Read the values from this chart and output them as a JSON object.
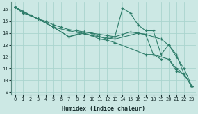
{
  "xlabel": "Humidex (Indice chaleur)",
  "xlim": [
    -0.5,
    23.5
  ],
  "ylim": [
    8.8,
    16.6
  ],
  "yticks": [
    9,
    10,
    11,
    12,
    13,
    14,
    15,
    16
  ],
  "xticks": [
    0,
    1,
    2,
    3,
    4,
    5,
    6,
    7,
    8,
    9,
    10,
    11,
    12,
    13,
    14,
    15,
    16,
    17,
    18,
    19,
    20,
    21,
    22,
    23
  ],
  "bg_color": "#cce8e4",
  "grid_color": "#aad4ce",
  "line_color": "#2e7d6a",
  "lines": [
    {
      "x": [
        0,
        1,
        2,
        3,
        5,
        7,
        9,
        10,
        11,
        12,
        13,
        14,
        15,
        16,
        17,
        18,
        19,
        20,
        21,
        22,
        23
      ],
      "y": [
        16.2,
        15.7,
        15.5,
        15.2,
        14.5,
        13.7,
        14.1,
        14.0,
        13.7,
        13.5,
        13.7,
        16.1,
        15.7,
        14.7,
        14.2,
        14.2,
        12.2,
        13.0,
        12.2,
        10.5,
        9.5
      ]
    },
    {
      "x": [
        0,
        1,
        2,
        3,
        4,
        5,
        6,
        7,
        8,
        9,
        10,
        11,
        12,
        13,
        14,
        15,
        16,
        17,
        18,
        19,
        20,
        21,
        22,
        23
      ],
      "y": [
        16.2,
        15.8,
        15.5,
        15.2,
        15.0,
        14.7,
        14.5,
        14.3,
        14.2,
        14.1,
        14.0,
        13.9,
        13.8,
        13.7,
        13.9,
        14.1,
        14.0,
        13.9,
        13.7,
        13.5,
        13.0,
        12.0,
        11.0,
        9.5
      ]
    },
    {
      "x": [
        0,
        2,
        3,
        5,
        7,
        9,
        10,
        11,
        12,
        13,
        17,
        18,
        20,
        21,
        22,
        23
      ],
      "y": [
        16.2,
        15.5,
        15.2,
        14.5,
        13.7,
        14.0,
        13.8,
        13.5,
        13.4,
        13.2,
        12.2,
        12.2,
        11.8,
        10.8,
        10.5,
        9.5
      ]
    },
    {
      "x": [
        0,
        3,
        5,
        7,
        10,
        13,
        16,
        17,
        18,
        19,
        20,
        21,
        22,
        23
      ],
      "y": [
        16.2,
        15.2,
        14.5,
        14.2,
        13.8,
        13.5,
        14.0,
        13.9,
        12.2,
        11.8,
        11.8,
        11.0,
        10.5,
        9.5
      ]
    }
  ]
}
